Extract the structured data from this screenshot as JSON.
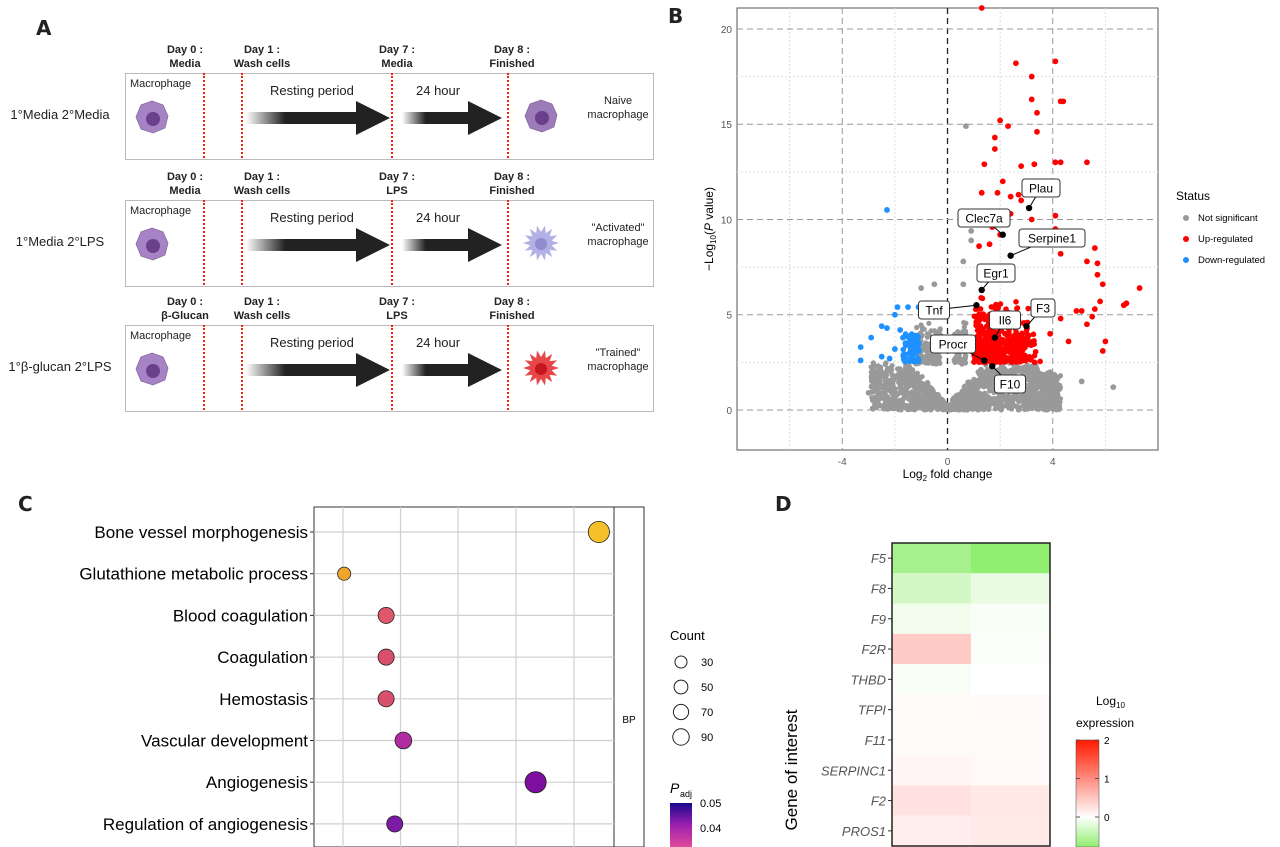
{
  "panels": {
    "a": "A",
    "b": "B",
    "c": "C",
    "d": "D"
  },
  "panel_a": {
    "rows": [
      {
        "label": "1°Media 2°Media",
        "day0": [
          "Day 0 :",
          "Media"
        ],
        "day1": [
          "Day 1 :",
          "Wash cells"
        ],
        "day7": [
          "Day 7 :",
          "Media"
        ],
        "day8": [
          "Day 8 :",
          "Finished"
        ],
        "start": "Macrophage",
        "rest": "Resting period",
        "hour": "24 hour",
        "end": [
          "Naive",
          "macrophage"
        ],
        "end_cell": "naive",
        "end_color": "#9b7bb8"
      },
      {
        "label": "1°Media 2°LPS",
        "day0": [
          "Day 0 :",
          "Media"
        ],
        "day1": [
          "Day 1 :",
          "Wash cells"
        ],
        "day7": [
          "Day 7 :",
          "LPS"
        ],
        "day8": [
          "Day 8 :",
          "Finished"
        ],
        "start": "Macrophage",
        "rest": "Resting period",
        "hour": "24 hour",
        "end": [
          "\"Activated\"",
          "macrophage"
        ],
        "end_cell": "activated",
        "end_color": "#b3b0e6"
      },
      {
        "label": "1°β-glucan 2°LPS",
        "day0": [
          "Day 0 :",
          "β-Glucan"
        ],
        "day1": [
          "Day 1 :",
          "Wash cells"
        ],
        "day7": [
          "Day 7 :",
          "LPS"
        ],
        "day8": [
          "Day 8 :",
          "Finished"
        ],
        "start": "Macrophage",
        "rest": "Resting period",
        "hour": "24 hour",
        "end": [
          "\"Trained\"",
          "macrophage"
        ],
        "end_cell": "trained",
        "end_color": "#e8474a"
      }
    ]
  },
  "chart_data": [
    {
      "type": "scatter",
      "panel": "B",
      "xlabel": "Log2 fold change",
      "ylabel": "-Log10(P value)",
      "xlim": [
        -8,
        8
      ],
      "ylim": [
        -2.1,
        21.1
      ],
      "xticks": [
        -4,
        0,
        4
      ],
      "yticks": [
        0,
        5,
        10,
        15,
        20
      ],
      "grid": true,
      "legend": {
        "title": "Status",
        "placement": "right",
        "entries": [
          {
            "name": "Not significant",
            "color": "#999999"
          },
          {
            "name": "Up-regulated",
            "color": "#ff0000"
          },
          {
            "name": "Down-regulated",
            "color": "#1e90ff"
          }
        ]
      },
      "series": [
        {
          "name": "Up-regulated",
          "color": "#ff0000",
          "points": [
            [
              1.3,
              21.1
            ],
            [
              2.6,
              18.2
            ],
            [
              4.1,
              18.3
            ],
            [
              3.2,
              17.5
            ],
            [
              3.2,
              16.3
            ],
            [
              4.3,
              16.2
            ],
            [
              4.4,
              16.2
            ],
            [
              3.4,
              15.6
            ],
            [
              2,
              15.2
            ],
            [
              2.3,
              14.9
            ],
            [
              3.4,
              14.6
            ],
            [
              1.8,
              14.3
            ],
            [
              1.8,
              13.7
            ],
            [
              1.4,
              12.9
            ],
            [
              2.8,
              12.8
            ],
            [
              3.3,
              12.9
            ],
            [
              4.1,
              13
            ],
            [
              4.3,
              13
            ],
            [
              5.3,
              13
            ],
            [
              2.1,
              12
            ],
            [
              1.3,
              11.4
            ],
            [
              1.9,
              11.4
            ],
            [
              2.4,
              11.2
            ],
            [
              2.7,
              11.3
            ],
            [
              2.8,
              11
            ],
            [
              3.2,
              10
            ],
            [
              4.1,
              10.2
            ],
            [
              2.4,
              10.3
            ],
            [
              1.7,
              9.6
            ],
            [
              4.1,
              9.5
            ],
            [
              2,
              9.2
            ],
            [
              2.9,
              8.9
            ],
            [
              1.2,
              8.6
            ],
            [
              1.6,
              8.7
            ],
            [
              5.6,
              8.5
            ],
            [
              5.3,
              7.8
            ],
            [
              5.7,
              7.7
            ],
            [
              4.3,
              8.2
            ],
            [
              5.7,
              7.1
            ],
            [
              5.9,
              6.6
            ],
            [
              7.3,
              6.4
            ],
            [
              6.8,
              5.6
            ],
            [
              6.7,
              5.5
            ],
            [
              5.8,
              5.7
            ],
            [
              5.1,
              5.2
            ],
            [
              4.9,
              5.2
            ],
            [
              5.6,
              5.3
            ],
            [
              5.5,
              4.9
            ],
            [
              6,
              3.6
            ],
            [
              5.9,
              3.1
            ],
            [
              5.3,
              4.5
            ],
            [
              4.3,
              4.8
            ],
            [
              3.9,
              4
            ],
            [
              4.6,
              3.6
            ]
          ]
        },
        {
          "name": "Down-regulated",
          "color": "#1e90ff",
          "points": [
            [
              -2.3,
              10.5
            ],
            [
              -1.9,
              5.4
            ],
            [
              -1.5,
              5.4
            ],
            [
              -1.1,
              5.4
            ],
            [
              -2,
              5
            ],
            [
              -2.5,
              4.4
            ],
            [
              -2.3,
              4.3
            ],
            [
              -1.8,
              4.2
            ],
            [
              -2.9,
              3.8
            ],
            [
              -3.3,
              3.3
            ],
            [
              -3.3,
              2.6
            ],
            [
              -2.5,
              2.8
            ],
            [
              -2,
              3.2
            ],
            [
              -1.6,
              3.5
            ],
            [
              -1.3,
              3.9
            ],
            [
              -1.2,
              3
            ],
            [
              -1.4,
              2.7
            ],
            [
              -1.1,
              2.6
            ],
            [
              -1.6,
              2.9
            ],
            [
              -2.2,
              2.7
            ]
          ]
        },
        {
          "name": "Not significant",
          "color": "#999999",
          "points": [
            [
              0.7,
              14.9
            ],
            [
              0.9,
              9.4
            ],
            [
              0.9,
              8.9
            ],
            [
              0.6,
              7.8
            ],
            [
              -0.5,
              6.6
            ],
            [
              -1,
              6.4
            ],
            [
              0.6,
              6.6
            ],
            [
              6.3,
              1.2
            ],
            [
              -3,
              0.9
            ],
            [
              5.1,
              1.5
            ]
          ]
        }
      ],
      "labeled_genes": [
        {
          "gene": "Plau",
          "x": 3.1,
          "y": 10.6
        },
        {
          "gene": "Clec7a",
          "x": 2.1,
          "y": 9.2
        },
        {
          "gene": "Serpine1",
          "x": 2.4,
          "y": 8.1
        },
        {
          "gene": "Egr1",
          "x": 1.3,
          "y": 6.3
        },
        {
          "gene": "Tnf",
          "x": 1.1,
          "y": 5.5
        },
        {
          "gene": "Il6",
          "x": 1.8,
          "y": 3.8
        },
        {
          "gene": "F3",
          "x": 3.0,
          "y": 4.4
        },
        {
          "gene": "Procr",
          "x": 1.4,
          "y": 2.6
        },
        {
          "gene": "F10",
          "x": 1.7,
          "y": 2.3
        }
      ]
    },
    {
      "type": "scatter",
      "panel": "C",
      "facet": "BP",
      "categories": [
        "Bone vessel morphogenesis",
        "Glutathione metabolic process",
        "Blood coagulation",
        "Coagulation",
        "Hemostasis",
        "Vascular development",
        "Angiogenesis",
        "Regulation of angiogenesis"
      ],
      "x_gridline_units": [
        1,
        2,
        3,
        4,
        5
      ],
      "x": [
        5.45,
        1.02,
        1.75,
        1.75,
        1.75,
        2.05,
        4.35,
        1.9
      ],
      "count": [
        90,
        20,
        40,
        40,
        40,
        45,
        90,
        40
      ],
      "colors": [
        "#f5c02a",
        "#f0a52a",
        "#e0566a",
        "#d9506e",
        "#d9506e",
        "#b02ca0",
        "#7d0fa0",
        "#7d1aa6"
      ],
      "size_legend": {
        "title": "Count",
        "values": [
          30,
          50,
          70,
          90
        ]
      },
      "color_legend": {
        "title": "P",
        "subscript": "adj",
        "ticks": [
          "0.05",
          "0.04"
        ],
        "colors": [
          "#1a0a8c",
          "#9b1fb0",
          "#e04a9a"
        ]
      }
    },
    {
      "type": "heatmap",
      "panel": "D",
      "ylabel": "Gene of interest",
      "rows": [
        "F5",
        "F8",
        "F9",
        "F2R",
        "THBD",
        "TFPI",
        "F11",
        "SERPINC1",
        "F2",
        "PROS1"
      ],
      "values": [
        [
          -0.8,
          -1.0
        ],
        [
          -0.4,
          -0.2
        ],
        [
          -0.12,
          -0.06
        ],
        [
          0.45,
          -0.03
        ],
        [
          -0.06,
          -0.01
        ],
        [
          0.04,
          0.05
        ],
        [
          0.04,
          0.04
        ],
        [
          0.08,
          0.05
        ],
        [
          0.25,
          0.2
        ],
        [
          0.15,
          0.18
        ]
      ],
      "colorbar": {
        "title": "Log",
        "subscript": "10",
        "title2": "expression",
        "ticks": [
          "2",
          "1",
          "0"
        ],
        "low": "#90ee70",
        "mid": "#ffffff",
        "high": "#ff1a00",
        "range": [
          -1,
          2
        ]
      }
    }
  ]
}
